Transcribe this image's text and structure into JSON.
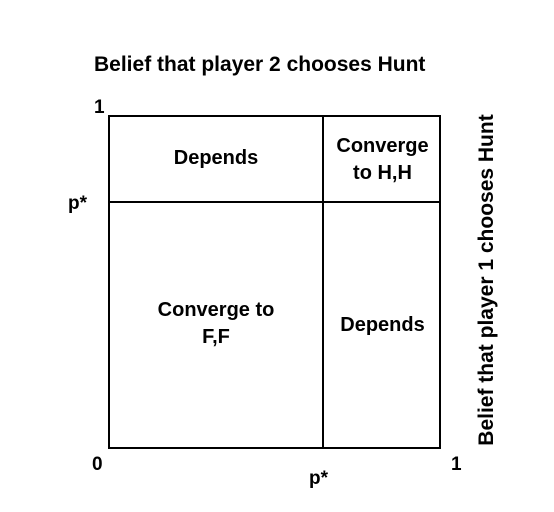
{
  "title": "Belief that player 2 chooses Hunt",
  "side_label": "Belief that player 1 chooses Hunt",
  "ticks": {
    "top_one": "1",
    "left_pstar": "p*",
    "zero": "0",
    "right_one": "1",
    "bottom_pstar": "p*"
  },
  "regions": {
    "top_left": "Depends",
    "top_right": [
      "Converge",
      "to H,H"
    ],
    "bottom_left": [
      "Converge to",
      "F,F"
    ],
    "bottom_right": "Depends"
  }
}
